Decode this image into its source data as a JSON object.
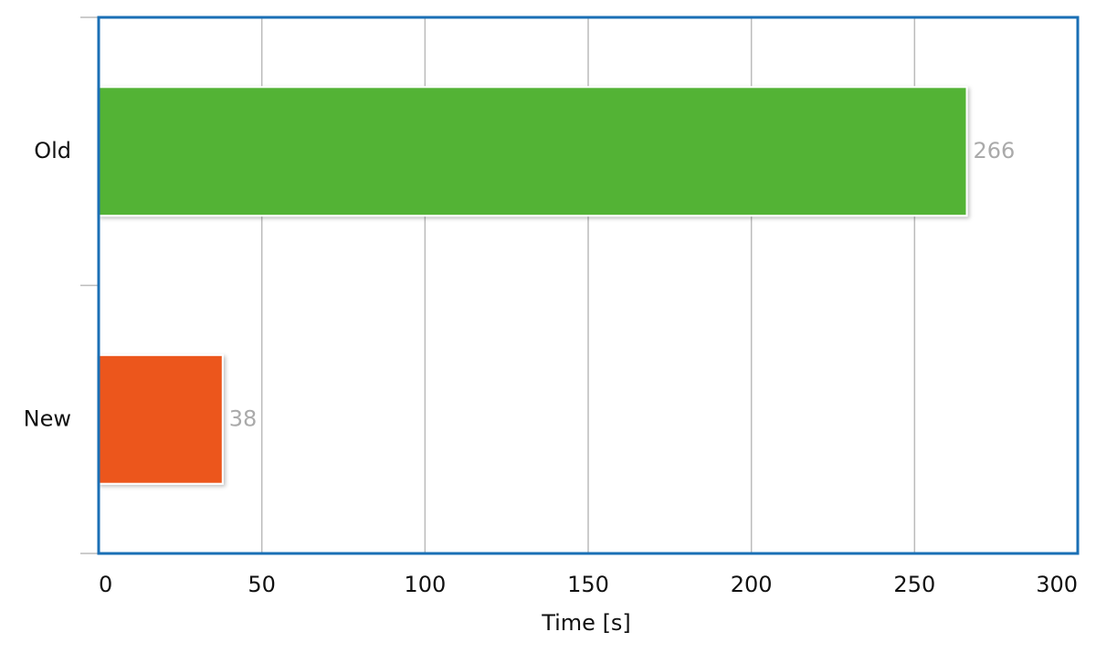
{
  "chart_data": {
    "type": "bar",
    "orientation": "horizontal",
    "categories": [
      "Old",
      "New"
    ],
    "values": [
      266,
      38
    ],
    "colors": [
      "#52b335",
      "#ec561c"
    ],
    "xlabel": "Time [s]",
    "xlim": [
      0,
      300
    ],
    "xticks": [
      0,
      50,
      100,
      150,
      200,
      250,
      300
    ],
    "grid": true
  }
}
